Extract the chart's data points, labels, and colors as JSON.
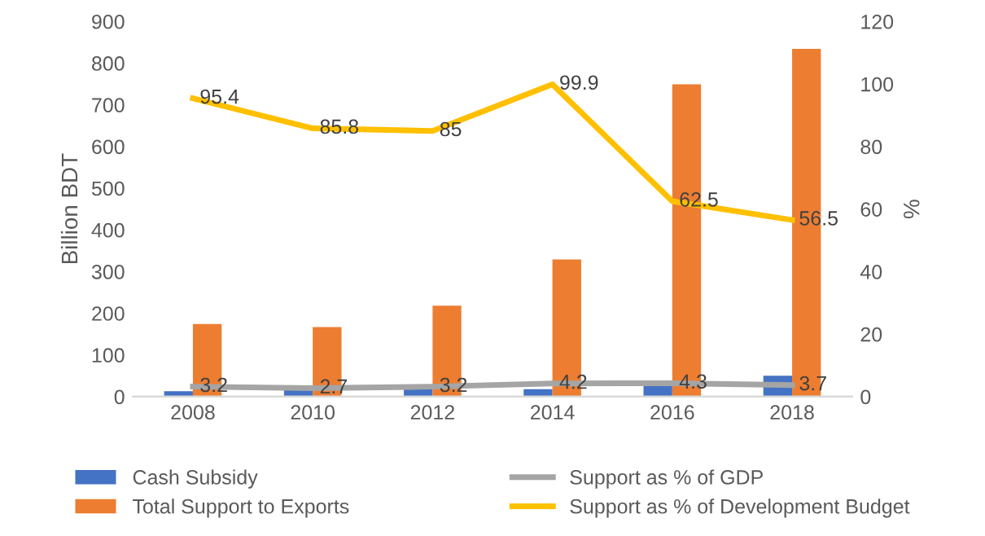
{
  "chart_data": {
    "type": "bar",
    "categories": [
      "2008",
      "2010",
      "2012",
      "2014",
      "2016",
      "2018"
    ],
    "ylabel": "Billion BDT",
    "y2label": "%",
    "ylim": [
      0,
      900
    ],
    "yticks": [
      0,
      100,
      200,
      300,
      400,
      500,
      600,
      700,
      800,
      900
    ],
    "y2lim": [
      0,
      120
    ],
    "y2ticks": [
      0,
      20,
      40,
      60,
      80,
      100,
      120
    ],
    "grid": false,
    "legend": "bottom",
    "series": [
      {
        "name": "Cash Subsidy",
        "color": "#4472c4",
        "values": [
          13,
          21,
          24,
          18,
          28,
          50
        ]
      },
      {
        "name": "Total Support to Exports",
        "color": "#ed7d31",
        "values": [
          174,
          167,
          218,
          329,
          749,
          834
        ]
      },
      {
        "name": "Support as % of GDP",
        "type": "line",
        "axis": "y2",
        "color": "#a5a5a5",
        "values": [
          3.2,
          2.7,
          3.2,
          4.2,
          4.3,
          3.7
        ],
        "data_labels": true
      },
      {
        "name": "Support as % of Development Budget",
        "type": "line",
        "axis": "y2",
        "color": "#ffc000",
        "values": [
          95.4,
          85.8,
          85,
          99.9,
          62.5,
          56.5
        ],
        "data_labels": true
      }
    ]
  }
}
